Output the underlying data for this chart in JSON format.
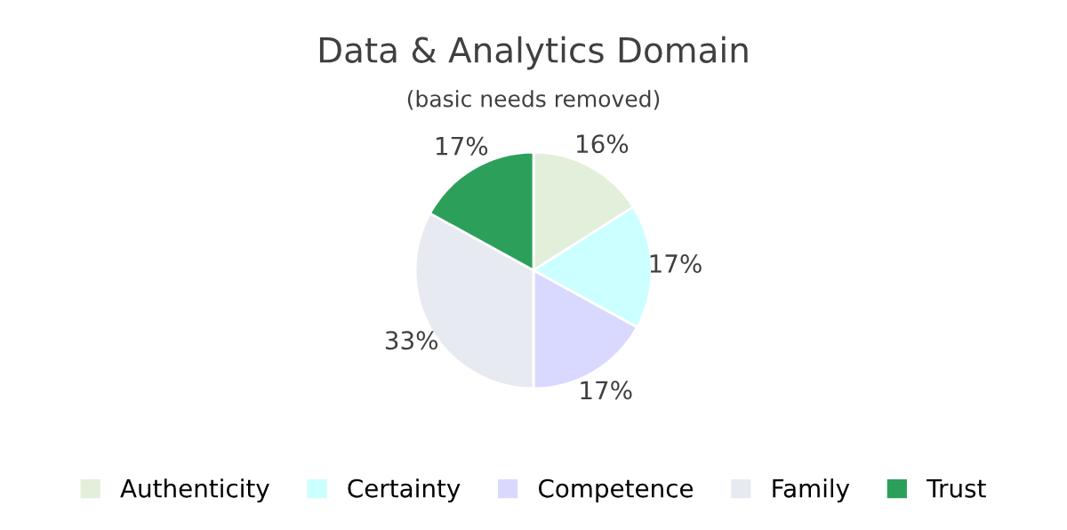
{
  "chart_data": {
    "type": "pie",
    "title": "Data & Analytics Domain",
    "subtitle": "(basic needs removed)",
    "categories": [
      "Authenticity",
      "Certainty",
      "Competence",
      "Family",
      "Trust"
    ],
    "values": [
      16,
      17,
      17,
      33,
      17
    ],
    "value_labels": [
      "16%",
      "17%",
      "17%",
      "33%",
      "17%"
    ],
    "colors": [
      "#e2efda",
      "#ccffff",
      "#d9d9ff",
      "#e8eaf2",
      "#2ca05a"
    ],
    "legend": "bottom"
  }
}
